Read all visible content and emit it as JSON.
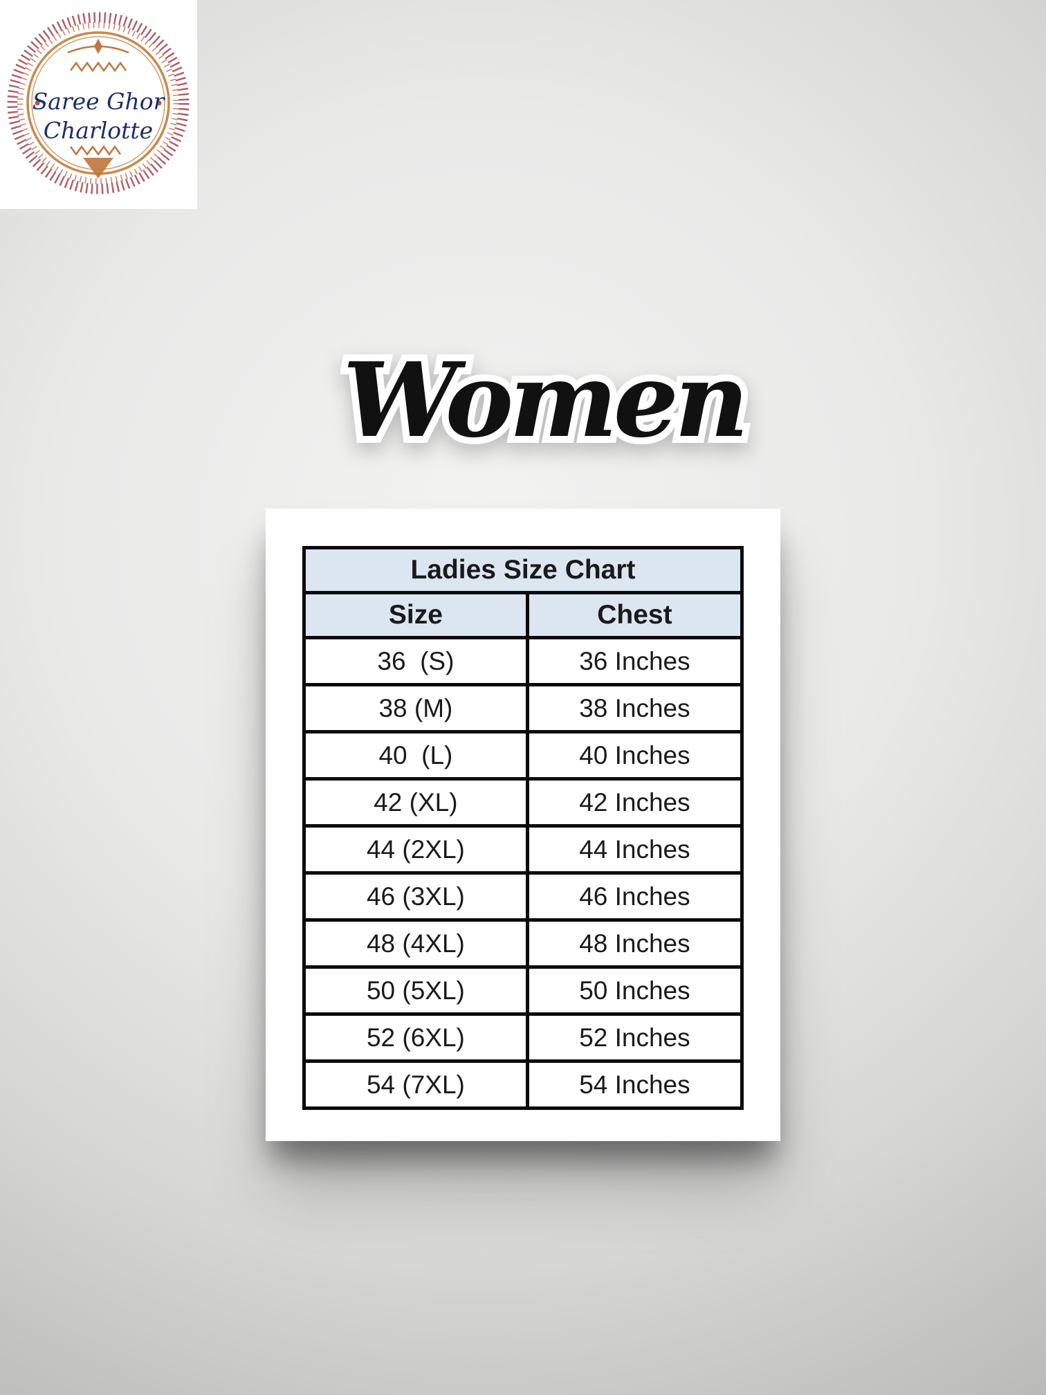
{
  "brand_logo": {
    "name_line1": "Saree Ghor",
    "name_line2": "Charlotte",
    "text_color": "#1e2f66",
    "ring_outer_color": "#a6505c",
    "ring_mid_color": "#bc6b50",
    "ring_gold_color": "#c68a4f",
    "ornament_color": "#c0763c"
  },
  "hero_title": {
    "text": "Women",
    "fill_color": "#111111",
    "outline_color": "#ffffff"
  },
  "size_chart": {
    "title": "Ladies Size Chart",
    "columns": [
      "Size",
      "Chest"
    ],
    "rows": [
      {
        "size": "36  (S)",
        "chest": "36 Inches"
      },
      {
        "size": "38 (M)",
        "chest": "38 Inches"
      },
      {
        "size": "40  (L)",
        "chest": "40 Inches"
      },
      {
        "size": "42 (XL)",
        "chest": "42 Inches"
      },
      {
        "size": "44 (2XL)",
        "chest": "44 Inches"
      },
      {
        "size": "46 (3XL)",
        "chest": "46 Inches"
      },
      {
        "size": "48 (4XL)",
        "chest": "48 Inches"
      },
      {
        "size": "50 (5XL)",
        "chest": "50 Inches"
      },
      {
        "size": "52 (6XL)",
        "chest": "52 Inches"
      },
      {
        "size": "54 (7XL)",
        "chest": "54 Inches"
      }
    ],
    "header_bg": "#dce6f1",
    "border_color": "#0a0a0a",
    "text_color": "#1a1a1a",
    "card_bg": "#ffffff"
  }
}
